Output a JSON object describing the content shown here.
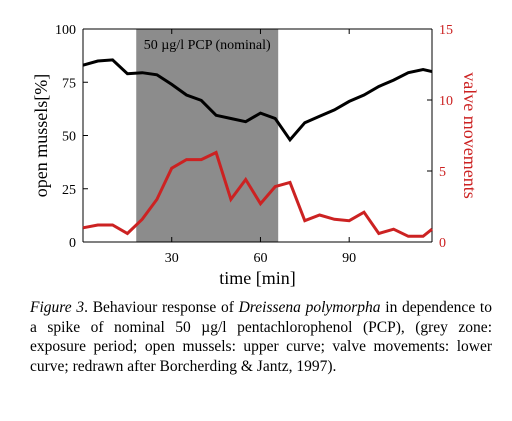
{
  "chart_data": {
    "type": "line",
    "xlabel": "time [min]",
    "ylabel_left": "open mussels[%]",
    "ylabel_right": "valve movements",
    "x_ticks": [
      30,
      60,
      90
    ],
    "y_left_ticks": [
      0,
      25,
      50,
      75,
      100
    ],
    "y_right_ticks": [
      0,
      5,
      10,
      15
    ],
    "xlim": [
      0,
      118
    ],
    "ylim_left": [
      0,
      100
    ],
    "ylim_right": [
      0,
      15
    ],
    "band": {
      "x_start": 18,
      "x_end": 66,
      "label": "50 µg/l PCP (nominal)",
      "color": "#8c8c8c"
    },
    "series": [
      {
        "axis": "left",
        "color": "#000000",
        "x": [
          0,
          5,
          10,
          15,
          20,
          25,
          30,
          35,
          40,
          45,
          50,
          55,
          60,
          65,
          70,
          75,
          80,
          85,
          90,
          95,
          100,
          105,
          110,
          115,
          118
        ],
        "y": [
          83,
          85,
          85.5,
          79,
          79.5,
          78.5,
          74,
          69,
          66.5,
          59.5,
          58,
          56.5,
          60.5,
          58,
          48,
          56,
          59,
          62,
          66,
          69,
          73,
          76,
          79.5,
          81,
          80
        ]
      },
      {
        "axis": "right",
        "color": "#cc2222",
        "x": [
          0,
          5,
          10,
          15,
          20,
          25,
          30,
          35,
          40,
          45,
          50,
          55,
          60,
          65,
          70,
          75,
          80,
          85,
          90,
          95,
          100,
          105,
          110,
          115,
          118
        ],
        "y": [
          1,
          1.2,
          1.2,
          0.6,
          1.6,
          3,
          5.2,
          5.8,
          5.8,
          6.3,
          3,
          4.4,
          2.7,
          3.9,
          4.2,
          1.5,
          1.9,
          1.6,
          1.5,
          2.1,
          0.6,
          0.9,
          0.4,
          0.4,
          0.9
        ]
      }
    ]
  },
  "caption": {
    "figure_label": "Figure 3",
    "dot": ".",
    "text_1": " Behaviour response of ",
    "species": "Dreissena polymorpha",
    "text_2": " in dependence to a spike of nominal 50 µg/l pentachlorophenol (PCP), (grey zone: exposure period; open mussels: upper curve; valve movements: lower curve; redrawn after Borcherding & Jantz, 1997)."
  }
}
